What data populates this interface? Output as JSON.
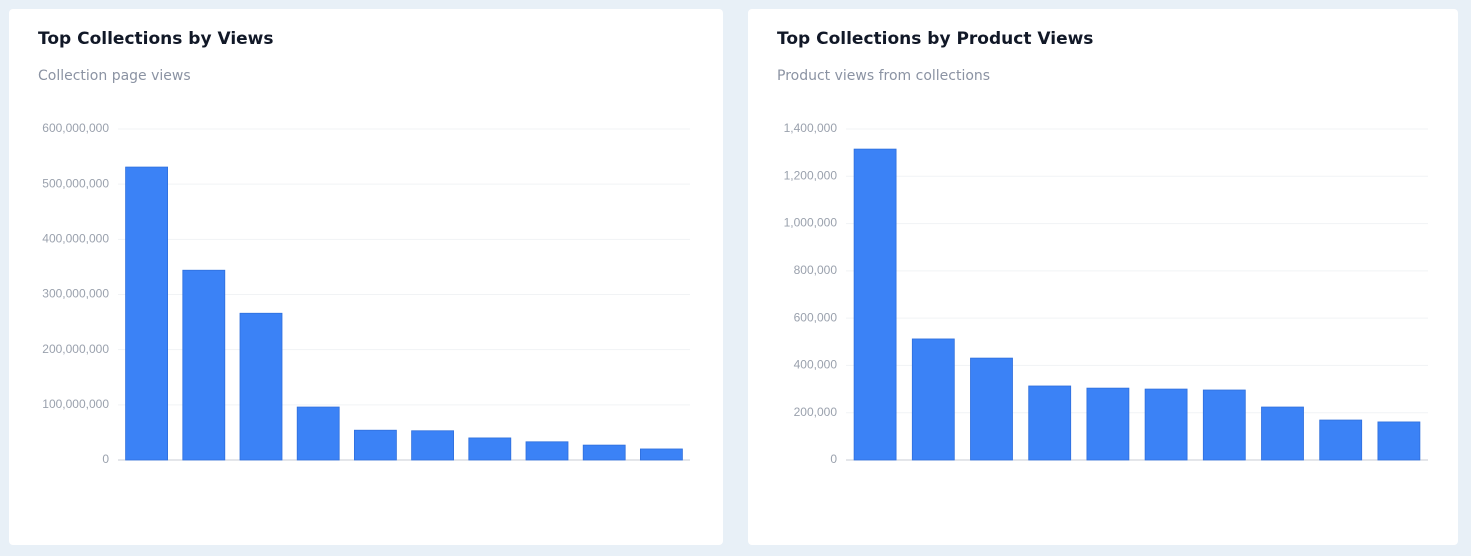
{
  "chart_data": [
    {
      "type": "bar",
      "title": "Top Collections by Views",
      "subtitle": "Collection page views",
      "categories": [
        null,
        null,
        null,
        null,
        null,
        null,
        null,
        null,
        null,
        null
      ],
      "values": [
        531000000,
        344000000,
        266000000,
        96000000,
        54000000,
        53000000,
        40000000,
        33000000,
        27000000,
        20000000
      ],
      "color": "#3b82f6",
      "ylim": [
        0,
        600000000
      ],
      "yticks": [
        0,
        {
          "value": 100000000,
          "label": "100,000,000"
        },
        {
          "value": 200000000,
          "label": "200,000,000"
        },
        {
          "value": 300000000,
          "label": "300,000,000"
        },
        {
          "value": 400000000,
          "label": "400,000,000"
        },
        {
          "value": 500000000,
          "label": "500,000,000"
        },
        {
          "value": 600000000,
          "label": "600,000,000"
        }
      ],
      "grid": true
    },
    {
      "type": "bar",
      "title": "Top Collections by Product Views",
      "subtitle": "Product views from collections",
      "categories": [
        null,
        null,
        null,
        null,
        null,
        null,
        null,
        null,
        null,
        null
      ],
      "values": [
        1315000,
        512000,
        431000,
        313000,
        304000,
        300000,
        296000,
        224000,
        169000,
        161000
      ],
      "color": "#3b82f6",
      "ylim": [
        0,
        1400000
      ],
      "yticks": [
        0,
        {
          "value": 200000,
          "label": "200,000"
        },
        {
          "value": 400000,
          "label": "400,000"
        },
        {
          "value": 600000,
          "label": "600,000"
        },
        {
          "value": 800000,
          "label": "800,000"
        },
        {
          "value": 1000000,
          "label": "1,000,000"
        },
        {
          "value": 1200000,
          "label": "1,200,000"
        },
        {
          "value": 1400000,
          "label": "1,400,000"
        }
      ],
      "grid": true
    }
  ]
}
